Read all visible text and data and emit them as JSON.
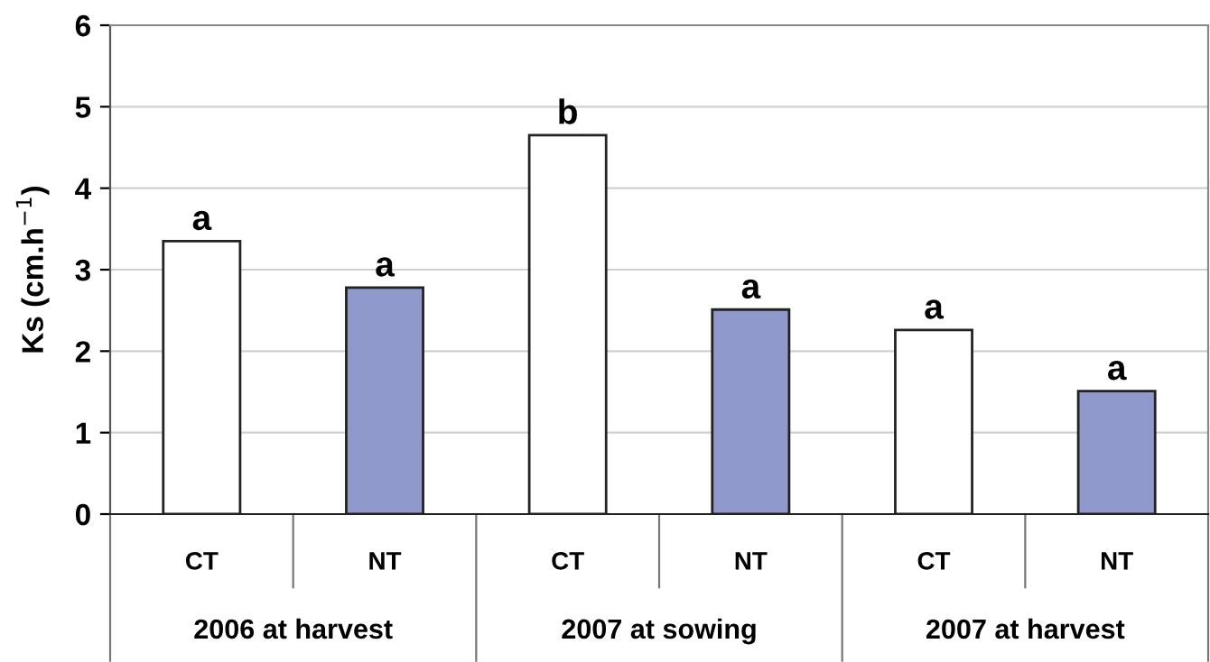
{
  "chart_data": {
    "type": "bar",
    "ylabel": "Ks (cm.h$^{−1}$)",
    "categories": [
      "CT",
      "NT",
      "CT",
      "NT",
      "CT",
      "NT"
    ],
    "values": [
      3.35,
      2.78,
      4.65,
      2.51,
      2.26,
      1.51
    ],
    "colors": [
      "#ffffff",
      "#9099cc",
      "#ffffff",
      "#9099cc",
      "#ffffff",
      "#9099cc"
    ],
    "value_labels": [
      "a",
      "a",
      "b",
      "a",
      "a",
      "a"
    ],
    "annotations": [
      "2006 at harvest",
      "2007 at sowing",
      "2007 at harvest"
    ],
    "ylim": [
      0,
      6
    ],
    "yticks": [
      0,
      1,
      2,
      3,
      4,
      5,
      6
    ],
    "grid": "y"
  }
}
